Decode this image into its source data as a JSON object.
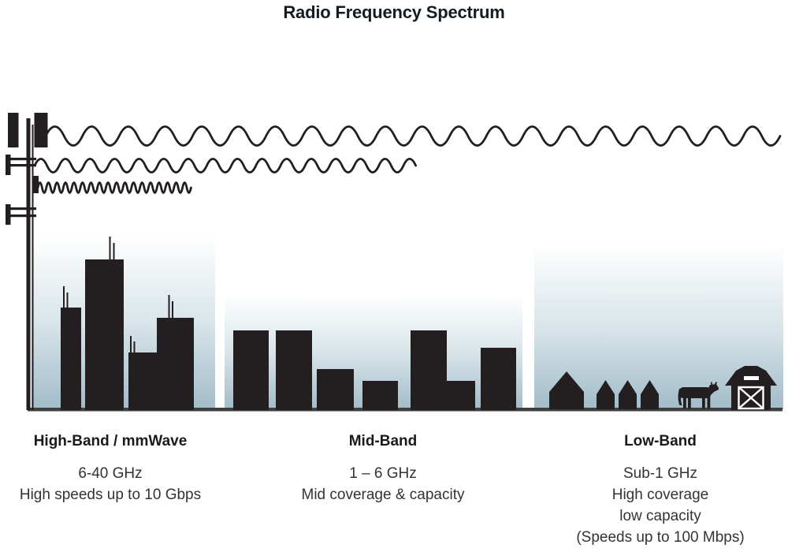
{
  "title": "Radio Frequency Spectrum",
  "colors": {
    "ink": "#231f20",
    "ground": "#3f3f3f",
    "title": "#141b23",
    "heading": "#1a1a1a",
    "text": "#333333",
    "sky-top": "#ffffff",
    "sky-mid": "#d9e5ea",
    "sky-bottom": "#a2bcc9"
  },
  "bands": [
    {
      "id": "high-band",
      "heading": "High-Band / mmWave",
      "lines": [
        "6-40 GHz",
        "High speeds up to 10 Gbps"
      ]
    },
    {
      "id": "mid-band",
      "heading": "Mid-Band",
      "lines": [
        "1 – 6 GHz",
        "Mid coverage & capacity"
      ]
    },
    {
      "id": "low-band",
      "heading": "Low-Band",
      "lines": [
        "Sub-1 GHz",
        "High coverage",
        "low capacity",
        "(Speeds up to 100 Mbps)"
      ]
    }
  ],
  "icons": {
    "tower": "cell-tower-icon",
    "waves": [
      "long-wave-icon",
      "medium-wave-icon",
      "short-wave-icon"
    ],
    "scenes": [
      "city-skyline-icon",
      "midtown-skyline-icon",
      "suburban-houses-icon",
      "cow-icon",
      "barn-icon"
    ]
  }
}
